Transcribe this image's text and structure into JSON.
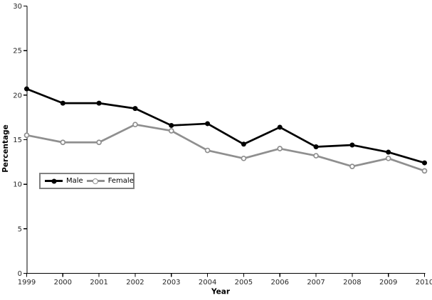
{
  "chart_data": {
    "type": "line",
    "title": "",
    "xlabel": "Year",
    "ylabel": "Percentage",
    "categories": [
      "1999",
      "2000",
      "2001",
      "2002",
      "2003",
      "2004",
      "2005",
      "2006",
      "2007",
      "2008",
      "2009",
      "2010"
    ],
    "series": [
      {
        "name": "Male",
        "color": "#000000",
        "marker": "filled-circle",
        "values": [
          20.7,
          19.1,
          19.1,
          18.5,
          16.6,
          16.8,
          14.5,
          16.4,
          14.2,
          14.4,
          13.6,
          12.4
        ]
      },
      {
        "name": "Female",
        "color": "#8f8f8f",
        "marker": "open-circle",
        "values": [
          15.5,
          14.7,
          14.7,
          16.7,
          16.0,
          13.8,
          12.9,
          14.0,
          13.2,
          12.0,
          12.9,
          11.5
        ]
      }
    ],
    "ylim": [
      0,
      30
    ],
    "yticks": [
      0,
      5,
      10,
      15,
      20,
      25,
      30
    ],
    "grid": false,
    "legend_position": "inside-left-middle",
    "axis_color": "#000000",
    "tick_label_color": "#262626",
    "axis_title_color": "#000000",
    "legend_border_color": "#808080",
    "background": "#ffffff"
  }
}
